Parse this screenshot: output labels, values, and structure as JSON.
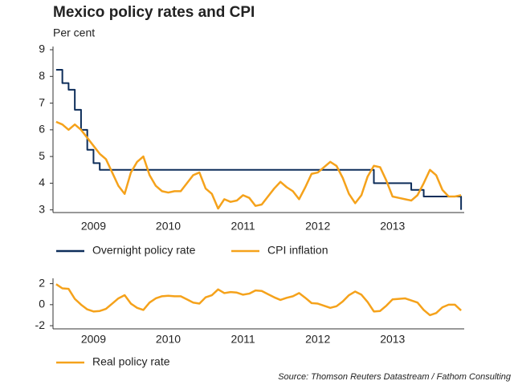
{
  "chart_data": [
    {
      "type": "line",
      "title": "Mexico policy rates and CPI",
      "subtitle": "Per cent",
      "categories": [
        null,
        null,
        null,
        null,
        null,
        null,
        "2009",
        null,
        null,
        null,
        null,
        null,
        null,
        null,
        null,
        null,
        null,
        null,
        "2010",
        null,
        null,
        null,
        null,
        null,
        null,
        null,
        null,
        null,
        null,
        null,
        "2011",
        null,
        null,
        null,
        null,
        null,
        null,
        null,
        null,
        null,
        null,
        null,
        "2012",
        null,
        null,
        null,
        null,
        null,
        null,
        null,
        null,
        null,
        null,
        null,
        "2013",
        null,
        null,
        null,
        null,
        null,
        null,
        null,
        null,
        null,
        null,
        null
      ],
      "series": [
        {
          "name": "Overnight policy rate",
          "color": "#0d2d5a",
          "drawstyle": "steps",
          "values": [
            8.25,
            7.75,
            7.5,
            6.75,
            6.0,
            5.25,
            4.75,
            4.5,
            4.5,
            4.5,
            4.5,
            4.5,
            4.5,
            4.5,
            4.5,
            4.5,
            4.5,
            4.5,
            4.5,
            4.5,
            4.5,
            4.5,
            4.5,
            4.5,
            4.5,
            4.5,
            4.5,
            4.5,
            4.5,
            4.5,
            4.5,
            4.5,
            4.5,
            4.5,
            4.5,
            4.5,
            4.5,
            4.5,
            4.5,
            4.5,
            4.5,
            4.5,
            4.5,
            4.5,
            4.5,
            4.5,
            4.5,
            4.5,
            4.5,
            4.5,
            4.5,
            4.0,
            4.0,
            4.0,
            4.0,
            4.0,
            4.0,
            3.75,
            3.75,
            3.5,
            3.5,
            3.5,
            3.5,
            3.5,
            3.5,
            3.0
          ]
        },
        {
          "name": "CPI inflation",
          "color": "#f5a21b",
          "values": [
            6.3,
            6.2,
            6.0,
            6.2,
            6.0,
            5.7,
            5.4,
            5.1,
            4.9,
            4.4,
            3.9,
            3.6,
            4.4,
            4.8,
            5.0,
            4.3,
            3.9,
            3.7,
            3.65,
            3.7,
            3.7,
            4.0,
            4.3,
            4.4,
            3.8,
            3.6,
            3.05,
            3.4,
            3.3,
            3.35,
            3.55,
            3.45,
            3.15,
            3.2,
            3.5,
            3.8,
            4.05,
            3.85,
            3.7,
            3.4,
            3.85,
            4.35,
            4.4,
            4.6,
            4.8,
            4.65,
            4.2,
            3.6,
            3.25,
            3.55,
            4.25,
            4.65,
            4.6,
            4.1,
            3.5,
            3.45,
            3.4,
            3.35,
            3.55,
            4.0,
            4.5,
            4.3,
            3.75,
            3.5,
            3.5,
            3.55
          ]
        }
      ],
      "ylim": [
        2.9,
        9.0
      ],
      "yticks": [
        3,
        4,
        5,
        6,
        7,
        8,
        9
      ]
    },
    {
      "type": "line",
      "categories": [
        null,
        null,
        null,
        null,
        null,
        null,
        "2009",
        null,
        null,
        null,
        null,
        null,
        null,
        null,
        null,
        null,
        null,
        null,
        "2010",
        null,
        null,
        null,
        null,
        null,
        null,
        null,
        null,
        null,
        null,
        null,
        "2011",
        null,
        null,
        null,
        null,
        null,
        null,
        null,
        null,
        null,
        null,
        null,
        "2012",
        null,
        null,
        null,
        null,
        null,
        null,
        null,
        null,
        null,
        null,
        null,
        "2013",
        null,
        null,
        null,
        null,
        null,
        null,
        null,
        null,
        null,
        null,
        null
      ],
      "series": [
        {
          "name": "Real policy rate",
          "color": "#f5a21b",
          "values": [
            1.95,
            1.55,
            1.5,
            0.55,
            0,
            -0.45,
            -0.65,
            -0.6,
            -0.4,
            0.1,
            0.6,
            0.9,
            0.1,
            -0.3,
            -0.5,
            0.2,
            0.6,
            0.8,
            0.85,
            0.8,
            0.8,
            0.5,
            0.2,
            0.1,
            0.7,
            0.9,
            1.45,
            1.1,
            1.2,
            1.15,
            0.95,
            1.05,
            1.35,
            1.3,
            1.0,
            0.7,
            0.45,
            0.65,
            0.8,
            1.1,
            0.65,
            0.15,
            0.1,
            -0.1,
            -0.3,
            -0.15,
            0.3,
            0.9,
            1.25,
            0.95,
            0.25,
            -0.65,
            -0.6,
            -0.1,
            0.5,
            0.55,
            0.6,
            0.4,
            0.2,
            -0.5,
            -1.0,
            -0.8,
            -0.25,
            0,
            0,
            -0.55
          ]
        }
      ],
      "ylim": [
        -2.3,
        2.2
      ],
      "yticks": [
        -2,
        0,
        2
      ]
    }
  ],
  "source": "Source: Thomson Reuters Datastream / Fathom Consulting"
}
